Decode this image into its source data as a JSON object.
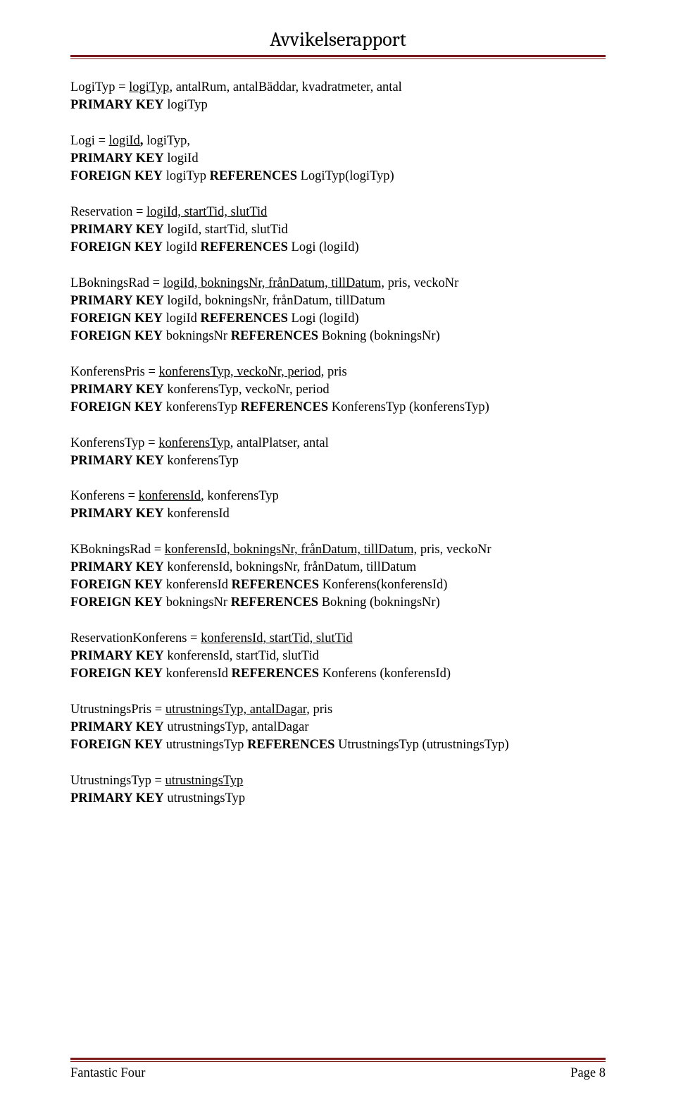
{
  "header": {
    "title": "Avvikelserapport"
  },
  "footer": {
    "left": "Fantastic Four",
    "right": "Page 8"
  },
  "sections": [
    {
      "lines": [
        [
          {
            "t": "LogiTyp = ",
            "b": false,
            "u": false
          },
          {
            "t": "logiTyp",
            "b": false,
            "u": true
          },
          {
            "t": ", antalRum, antalBäddar, kvadratmeter, antal",
            "b": false,
            "u": false
          }
        ],
        [
          {
            "t": "PRIMARY KEY",
            "b": true,
            "u": false
          },
          {
            "t": " logiTyp",
            "b": false,
            "u": false
          }
        ]
      ]
    },
    {
      "lines": [
        [
          {
            "t": "Logi = ",
            "b": false,
            "u": false
          },
          {
            "t": "logiId",
            "b": false,
            "u": true
          },
          {
            "t": ",",
            "b": true,
            "u": false
          },
          {
            "t": " logiTyp,",
            "b": false,
            "u": false
          }
        ],
        [
          {
            "t": "PRIMARY KEY",
            "b": true,
            "u": false
          },
          {
            "t": " logiId",
            "b": false,
            "u": false
          }
        ],
        [
          {
            "t": "FOREIGN KEY",
            "b": true,
            "u": false
          },
          {
            "t": " logiTyp ",
            "b": false,
            "u": false
          },
          {
            "t": "REFERENCES",
            "b": true,
            "u": false
          },
          {
            "t": " LogiTyp(logiTyp)",
            "b": false,
            "u": false
          }
        ]
      ]
    },
    {
      "lines": [
        [
          {
            "t": "Reservation = ",
            "b": false,
            "u": false
          },
          {
            "t": "logiId, startTid, slutTid",
            "b": false,
            "u": true
          }
        ],
        [
          {
            "t": "PRIMARY KEY",
            "b": true,
            "u": false
          },
          {
            "t": " logiId, startTid, slutTid",
            "b": false,
            "u": false
          }
        ],
        [
          {
            "t": "FOREIGN KEY",
            "b": true,
            "u": false
          },
          {
            "t": " logiId ",
            "b": false,
            "u": false
          },
          {
            "t": "REFERENCES",
            "b": true,
            "u": false
          },
          {
            "t": " Logi (logiId)",
            "b": false,
            "u": false
          }
        ]
      ]
    },
    {
      "lines": [
        [
          {
            "t": "LBokningsRad = ",
            "b": false,
            "u": false
          },
          {
            "t": "logiId, bokningsNr, frånDatum, tillDatum,",
            "b": false,
            "u": true
          },
          {
            "t": " pris, veckoNr",
            "b": false,
            "u": false
          }
        ],
        [
          {
            "t": "PRIMARY KEY",
            "b": true,
            "u": false
          },
          {
            "t": " logiId, bokningsNr, frånDatum, tillDatum",
            "b": false,
            "u": false
          }
        ],
        [
          {
            "t": "FOREIGN KEY",
            "b": true,
            "u": false
          },
          {
            "t": " logiId ",
            "b": false,
            "u": false
          },
          {
            "t": "REFERENCES",
            "b": true,
            "u": false
          },
          {
            "t": " Logi (logiId)",
            "b": false,
            "u": false
          }
        ],
        [
          {
            "t": "FOREIGN KEY",
            "b": true,
            "u": false
          },
          {
            "t": " bokningsNr ",
            "b": false,
            "u": false
          },
          {
            "t": "REFERENCES",
            "b": true,
            "u": false
          },
          {
            "t": " Bokning (bokningsNr)",
            "b": false,
            "u": false
          }
        ]
      ]
    },
    {
      "lines": [
        [
          {
            "t": "KonferensPris = ",
            "b": false,
            "u": false
          },
          {
            "t": "konferensTyp, veckoNr, period,",
            "b": false,
            "u": true
          },
          {
            "t": " pris",
            "b": false,
            "u": false
          }
        ],
        [
          {
            "t": "PRIMARY KEY",
            "b": true,
            "u": false
          },
          {
            "t": " konferensTyp, veckoNr, period",
            "b": false,
            "u": false
          }
        ],
        [
          {
            "t": "FOREIGN KEY",
            "b": true,
            "u": false
          },
          {
            "t": " konferensTyp ",
            "b": false,
            "u": false
          },
          {
            "t": "REFERENCES",
            "b": true,
            "u": false
          },
          {
            "t": " KonferensTyp (konferensTyp)",
            "b": false,
            "u": false
          }
        ]
      ]
    },
    {
      "lines": [
        [
          {
            "t": "KonferensTyp = ",
            "b": false,
            "u": false
          },
          {
            "t": "konferensTyp",
            "b": false,
            "u": true
          },
          {
            "t": ", antalPlatser, antal",
            "b": false,
            "u": false
          }
        ],
        [
          {
            "t": "PRIMARY KEY",
            "b": true,
            "u": false
          },
          {
            "t": " konferensTyp",
            "b": false,
            "u": false
          }
        ]
      ]
    },
    {
      "lines": [
        [
          {
            "t": "Konferens = ",
            "b": false,
            "u": false
          },
          {
            "t": "konferensId",
            "b": false,
            "u": true
          },
          {
            "t": ", konferensTyp",
            "b": false,
            "u": false
          }
        ],
        [
          {
            "t": "PRIMARY KEY",
            "b": true,
            "u": false
          },
          {
            "t": " konferensId",
            "b": false,
            "u": false
          }
        ]
      ]
    },
    {
      "lines": [
        [
          {
            "t": "KBokningsRad = ",
            "b": false,
            "u": false
          },
          {
            "t": "konferensId, bokningsNr, frånDatum, tillDatum,",
            "b": false,
            "u": true
          },
          {
            "t": " pris, veckoNr",
            "b": false,
            "u": false
          }
        ],
        [
          {
            "t": "PRIMARY KEY",
            "b": true,
            "u": false
          },
          {
            "t": " konferensId, bokningsNr, frånDatum, tillDatum",
            "b": false,
            "u": false
          }
        ],
        [
          {
            "t": "FOREIGN KEY",
            "b": true,
            "u": false
          },
          {
            "t": " konferensId ",
            "b": false,
            "u": false
          },
          {
            "t": "REFERENCES",
            "b": true,
            "u": false
          },
          {
            "t": " Konferens(konferensId)",
            "b": false,
            "u": false
          }
        ],
        [
          {
            "t": "FOREIGN KEY",
            "b": true,
            "u": false
          },
          {
            "t": " bokningsNr ",
            "b": false,
            "u": false
          },
          {
            "t": "REFERENCES",
            "b": true,
            "u": false
          },
          {
            "t": " Bokning (bokningsNr)",
            "b": false,
            "u": false
          }
        ]
      ]
    },
    {
      "lines": [
        [
          {
            "t": "ReservationKonferens = ",
            "b": false,
            "u": false
          },
          {
            "t": "konferensId, startTid, slutTid",
            "b": false,
            "u": true
          }
        ],
        [
          {
            "t": "PRIMARY KEY",
            "b": true,
            "u": false
          },
          {
            "t": " konferensId, startTid, slutTid",
            "b": false,
            "u": false
          }
        ],
        [
          {
            "t": "FOREIGN KEY",
            "b": true,
            "u": false
          },
          {
            "t": " konferensId ",
            "b": false,
            "u": false
          },
          {
            "t": "REFERENCES",
            "b": true,
            "u": false
          },
          {
            "t": " Konferens (konferensId)",
            "b": false,
            "u": false
          }
        ]
      ]
    },
    {
      "lines": [
        [
          {
            "t": "UtrustningsPris  = ",
            "b": false,
            "u": false
          },
          {
            "t": "utrustningsTyp, antalDagar",
            "b": false,
            "u": true
          },
          {
            "t": ", pris",
            "b": false,
            "u": false
          }
        ],
        [
          {
            "t": "PRIMARY KEY",
            "b": true,
            "u": false
          },
          {
            "t": " utrustningsTyp, antalDagar",
            "b": false,
            "u": false
          }
        ],
        [
          {
            "t": "FOREIGN KEY",
            "b": true,
            "u": false
          },
          {
            "t": " utrustningsTyp ",
            "b": false,
            "u": false
          },
          {
            "t": "REFERENCES",
            "b": true,
            "u": false
          },
          {
            "t": " UtrustningsTyp (utrustningsTyp)",
            "b": false,
            "u": false
          }
        ]
      ]
    },
    {
      "lines": [
        [
          {
            "t": "UtrustningsTyp = ",
            "b": false,
            "u": false
          },
          {
            "t": "utrustningsTyp",
            "b": false,
            "u": true
          }
        ],
        [
          {
            "t": "PRIMARY KEY",
            "b": true,
            "u": false
          },
          {
            "t": " utrustningsTyp",
            "b": false,
            "u": false
          }
        ]
      ]
    }
  ]
}
